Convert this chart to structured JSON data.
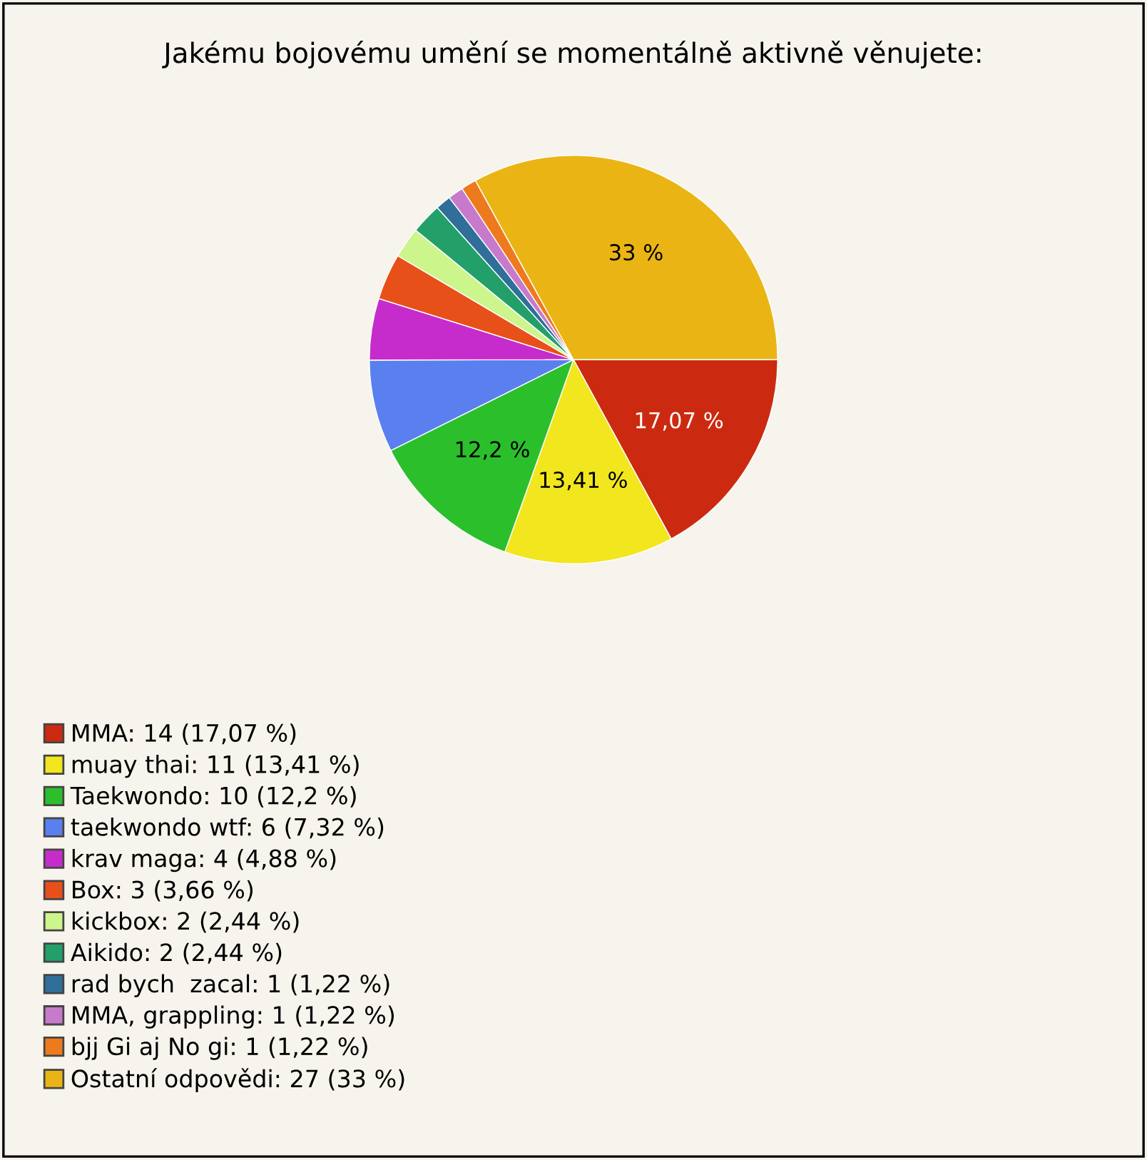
{
  "chart_data": {
    "type": "pie",
    "title": "Jakému bojovému umění se momentálně aktivně věnujete:",
    "categories": [
      "MMA: 14 (17,07 %)",
      "muay thai: 11 (13,41 %)",
      "Taekwondo: 10 (12,2 %)",
      "taekwondo wtf: 6 (7,32 %)",
      "krav maga: 4 (4,88 %)",
      "Box: 3 (3,66 %)",
      "kickbox: 2 (2,44 %)",
      "Aikido: 2 (2,44 %)",
      "rad bych  zacal: 1 (1,22 %)",
      "MMA, grappling: 1 (1,22 %)",
      "bjj Gi aj No gi: 1 (1,22 %)",
      "Ostatní odpovědi: 27 (33 %)"
    ],
    "values": [
      17.07,
      13.41,
      12.2,
      7.32,
      4.88,
      3.66,
      2.44,
      2.44,
      1.22,
      1.22,
      1.22,
      33
    ],
    "colors": [
      "#cc2a10",
      "#f2e61e",
      "#2cbf2c",
      "#5a7fee",
      "#c62ccc",
      "#e8501a",
      "#ccf58c",
      "#23a06a",
      "#2f6f99",
      "#c77acb",
      "#ee7a1e",
      "#eab514"
    ],
    "value_labels": [
      "17,07 %",
      "13,41 %",
      "12,2 %",
      null,
      null,
      null,
      null,
      null,
      null,
      null,
      null,
      "33 %"
    ],
    "legend": "bottom left"
  }
}
